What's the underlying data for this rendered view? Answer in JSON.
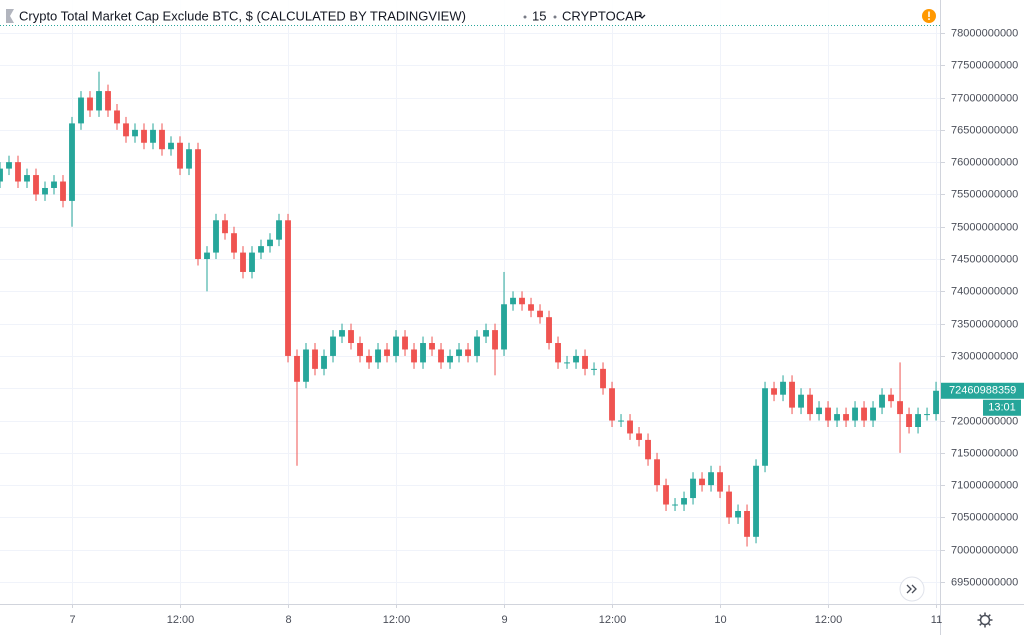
{
  "chart_data": {
    "type": "candlestick",
    "title": "Crypto Total Market Cap Exclude BTC, $ (CALCULATED BY TRADINGVIEW)",
    "interval": "15",
    "symbol": "CRYPTOCAP",
    "up_color": "#26a69a",
    "down_color": "#ef5350",
    "grid": true,
    "x": [
      -8,
      -7,
      -6,
      -5,
      -4,
      -3,
      -2,
      -1,
      0,
      1,
      2,
      3,
      4,
      5,
      6,
      7,
      8,
      9,
      10,
      11,
      12,
      13,
      14,
      15,
      16,
      17,
      18,
      19,
      20,
      21,
      22,
      23,
      24,
      25,
      26,
      27,
      28,
      29,
      30,
      31,
      32,
      33,
      34,
      35,
      36,
      37,
      38,
      39,
      40,
      41,
      42,
      43,
      44,
      45,
      46,
      47,
      48,
      49,
      50,
      51,
      52,
      53,
      54,
      55,
      56,
      57,
      58,
      59,
      60,
      61,
      62,
      63,
      64,
      65,
      66,
      67,
      68,
      69,
      70,
      71,
      72,
      73,
      74,
      75,
      76,
      77,
      78,
      79,
      80,
      81,
      82,
      83,
      84,
      85,
      86,
      87,
      88,
      89,
      90,
      91,
      92,
      93,
      94,
      95,
      96
    ],
    "open": [
      75700000000.0,
      75900000000.0,
      76000000000.0,
      75700000000.0,
      75800000000.0,
      75500000000.0,
      75600000000.0,
      75700000000.0,
      75400000000.0,
      76600000000.0,
      77000000000.0,
      76800000000.0,
      77100000000.0,
      76800000000.0,
      76600000000.0,
      76400000000.0,
      76500000000.0,
      76300000000.0,
      76500000000.0,
      76200000000.0,
      76300000000.0,
      75900000000.0,
      76200000000.0,
      74500000000.0,
      74600000000.0,
      75100000000.0,
      74900000000.0,
      74600000000.0,
      74300000000.0,
      74600000000.0,
      74700000000.0,
      74800000000.0,
      75100000000.0,
      73000000000.0,
      72600000000.0,
      73100000000.0,
      72800000000.0,
      73000000000.0,
      73300000000.0,
      73400000000.0,
      73200000000.0,
      73000000000.0,
      72900000000.0,
      73100000000.0,
      73000000000.0,
      73300000000.0,
      73100000000.0,
      72900000000.0,
      73200000000.0,
      73100000000.0,
      72900000000.0,
      73000000000.0,
      73100000000.0,
      73000000000.0,
      73300000000.0,
      73400000000.0,
      73100000000.0,
      73800000000.0,
      73900000000.0,
      73800000000.0,
      73700000000.0,
      73600000000.0,
      73200000000.0,
      72900000000.0,
      72900000000.0,
      73000000000.0,
      72800000000.0,
      72800000000.0,
      72500000000.0,
      72000000000.0,
      72000000000.0,
      71800000000.0,
      71700000000.0,
      71400000000.0,
      71000000000.0,
      70700000000.0,
      70700000000.0,
      70800000000.0,
      71100000000.0,
      71000000000.0,
      71200000000.0,
      70900000000.0,
      70500000000.0,
      70600000000.0,
      70200000000.0,
      71300000000.0,
      72500000000.0,
      72400000000.0,
      72600000000.0,
      72200000000.0,
      72400000000.0,
      72100000000.0,
      72200000000.0,
      72000000000.0,
      72100000000.0,
      72000000000.0,
      72200000000.0,
      72000000000.0,
      72200000000.0,
      72400000000.0,
      72300000000.0,
      72100000000.0,
      71900000000.0,
      72100000000.0,
      72100000000.0
    ],
    "high": [
      76000000000.0,
      76100000000.0,
      76100000000.0,
      75900000000.0,
      75900000000.0,
      75700000000.0,
      75800000000.0,
      75800000000.0,
      76700000000.0,
      77100000000.0,
      77100000000.0,
      77400000000.0,
      77200000000.0,
      76900000000.0,
      76700000000.0,
      76600000000.0,
      76600000000.0,
      76600000000.0,
      76600000000.0,
      76400000000.0,
      76400000000.0,
      76300000000.0,
      76300000000.0,
      74700000000.0,
      75200000000.0,
      75200000000.0,
      75000000000.0,
      74700000000.0,
      74700000000.0,
      74800000000.0,
      74900000000.0,
      75200000000.0,
      75200000000.0,
      73100000000.0,
      73200000000.0,
      73200000000.0,
      73100000000.0,
      73400000000.0,
      73500000000.0,
      73500000000.0,
      73300000000.0,
      73100000000.0,
      73200000000.0,
      73200000000.0,
      73400000000.0,
      73400000000.0,
      73200000000.0,
      73300000000.0,
      73300000000.0,
      73200000000.0,
      73100000000.0,
      73200000000.0,
      73200000000.0,
      73400000000.0,
      73500000000.0,
      73500000000.0,
      74300000000.0,
      74000000000.0,
      74000000000.0,
      73900000000.0,
      73800000000.0,
      73700000000.0,
      73300000000.0,
      73000000000.0,
      73100000000.0,
      73100000000.0,
      72900000000.0,
      72900000000.0,
      72600000000.0,
      72100000000.0,
      72100000000.0,
      71900000000.0,
      71800000000.0,
      71500000000.0,
      71100000000.0,
      70800000000.0,
      70900000000.0,
      71200000000.0,
      71200000000.0,
      71300000000.0,
      71300000000.0,
      71000000000.0,
      70700000000.0,
      70700000000.0,
      71400000000.0,
      72600000000.0,
      72600000000.0,
      72700000000.0,
      72700000000.0,
      72500000000.0,
      72500000000.0,
      72300000000.0,
      72300000000.0,
      72200000000.0,
      72200000000.0,
      72300000000.0,
      72300000000.0,
      72300000000.0,
      72500000000.0,
      72500000000.0,
      72900000000.0,
      72200000000.0,
      72200000000.0,
      72200000000.0,
      72600000000.0
    ],
    "low": [
      75600000000.0,
      75800000000.0,
      75600000000.0,
      75600000000.0,
      75400000000.0,
      75400000000.0,
      75500000000.0,
      75300000000.0,
      75000000000.0,
      76500000000.0,
      76700000000.0,
      76700000000.0,
      76700000000.0,
      76500000000.0,
      76300000000.0,
      76300000000.0,
      76200000000.0,
      76200000000.0,
      76100000000.0,
      76100000000.0,
      75800000000.0,
      75800000000.0,
      74400000000.0,
      74000000000.0,
      74500000000.0,
      74800000000.0,
      74500000000.0,
      74200000000.0,
      74200000000.0,
      74500000000.0,
      74600000000.0,
      74700000000.0,
      72900000000.0,
      71300000000.0,
      72500000000.0,
      72700000000.0,
      72700000000.0,
      72900000000.0,
      73200000000.0,
      73100000000.0,
      72900000000.0,
      72800000000.0,
      72800000000.0,
      72900000000.0,
      72900000000.0,
      73000000000.0,
      72800000000.0,
      72800000000.0,
      73000000000.0,
      72800000000.0,
      72800000000.0,
      72900000000.0,
      72900000000.0,
      72900000000.0,
      73200000000.0,
      72700000000.0,
      73000000000.0,
      73700000000.0,
      73700000000.0,
      73600000000.0,
      73500000000.0,
      73100000000.0,
      72800000000.0,
      72800000000.0,
      72800000000.0,
      72700000000.0,
      72700000000.0,
      72400000000.0,
      71900000000.0,
      71900000000.0,
      71700000000.0,
      71600000000.0,
      71300000000.0,
      70900000000.0,
      70600000000.0,
      70600000000.0,
      70600000000.0,
      70700000000.0,
      70900000000.0,
      70900000000.0,
      70800000000.0,
      70400000000.0,
      70400000000.0,
      70050000000.0,
      70100000000.0,
      71200000000.0,
      72300000000.0,
      72300000000.0,
      72100000000.0,
      72100000000.0,
      72000000000.0,
      72000000000.0,
      71900000000.0,
      71900000000.0,
      71900000000.0,
      71900000000.0,
      71900000000.0,
      71900000000.0,
      72100000000.0,
      72200000000.0,
      71500000000.0,
      71800000000.0,
      71800000000.0,
      72000000000.0,
      72000000000.0
    ],
    "close": [
      75900000000.0,
      76000000000.0,
      75700000000.0,
      75800000000.0,
      75500000000.0,
      75600000000.0,
      75700000000.0,
      75400000000.0,
      76600000000.0,
      77000000000.0,
      76800000000.0,
      77100000000.0,
      76800000000.0,
      76600000000.0,
      76400000000.0,
      76500000000.0,
      76300000000.0,
      76500000000.0,
      76200000000.0,
      76300000000.0,
      75900000000.0,
      76200000000.0,
      74500000000.0,
      74600000000.0,
      75100000000.0,
      74900000000.0,
      74600000000.0,
      74300000000.0,
      74600000000.0,
      74700000000.0,
      74800000000.0,
      75100000000.0,
      73000000000.0,
      72600000000.0,
      73100000000.0,
      72800000000.0,
      73000000000.0,
      73300000000.0,
      73400000000.0,
      73200000000.0,
      73000000000.0,
      72900000000.0,
      73100000000.0,
      73000000000.0,
      73300000000.0,
      73100000000.0,
      72900000000.0,
      73200000000.0,
      73100000000.0,
      72900000000.0,
      73000000000.0,
      73100000000.0,
      73000000000.0,
      73300000000.0,
      73400000000.0,
      73100000000.0,
      73800000000.0,
      73900000000.0,
      73800000000.0,
      73700000000.0,
      73600000000.0,
      73200000000.0,
      72900000000.0,
      72900000000.0,
      73000000000.0,
      72800000000.0,
      72800000000.0,
      72500000000.0,
      72000000000.0,
      72000000000.0,
      71800000000.0,
      71700000000.0,
      71400000000.0,
      71000000000.0,
      70700000000.0,
      70700000000.0,
      70800000000.0,
      71100000000.0,
      71000000000.0,
      71200000000.0,
      70900000000.0,
      70500000000.0,
      70600000000.0,
      70200000000.0,
      71300000000.0,
      72500000000.0,
      72400000000.0,
      72600000000.0,
      72200000000.0,
      72400000000.0,
      72100000000.0,
      72200000000.0,
      72000000000.0,
      72100000000.0,
      72000000000.0,
      72200000000.0,
      72000000000.0,
      72200000000.0,
      72400000000.0,
      72300000000.0,
      72100000000.0,
      71900000000.0,
      72100000000.0,
      72100000000.0,
      72460988359
    ],
    "xlim": [
      -8,
      96.44
    ],
    "xticks": [
      {
        "value": 0,
        "label": "7"
      },
      {
        "value": 12,
        "label": "12:00"
      },
      {
        "value": 24,
        "label": "8"
      },
      {
        "value": 36,
        "label": "12:00"
      },
      {
        "value": 48,
        "label": "9"
      },
      {
        "value": 60,
        "label": "12:00"
      },
      {
        "value": 72,
        "label": "10"
      },
      {
        "value": 84,
        "label": "12:00"
      },
      {
        "value": 96,
        "label": "11"
      }
    ],
    "ylim": [
      69160000000,
      78510000000
    ],
    "yticks": [
      69500000000,
      70000000000,
      70500000000,
      71000000000,
      71500000000,
      72000000000,
      72500000000,
      73000000000,
      73500000000,
      74000000000,
      74500000000,
      75000000000,
      75500000000,
      76000000000,
      76500000000,
      77000000000,
      77500000000,
      78000000000
    ],
    "last_price": 72460988359,
    "countdown": "13:01"
  }
}
